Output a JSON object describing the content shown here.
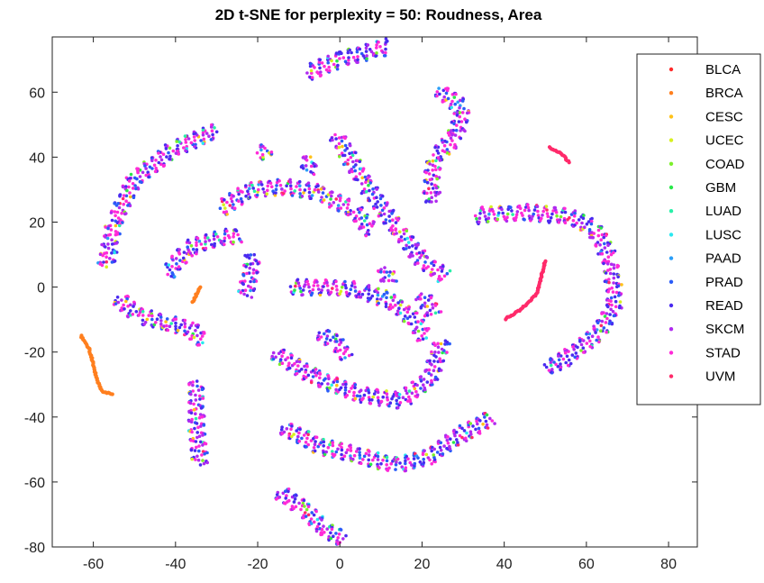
{
  "chart_data": {
    "type": "scatter",
    "title": "2D t-SNE for perplexity = 50: Roudness, Area",
    "xlim": [
      -70,
      87
    ],
    "ylim": [
      -80,
      77
    ],
    "xticks": [
      -60,
      -40,
      -20,
      0,
      20,
      40,
      60,
      80
    ],
    "yticks": [
      -80,
      -60,
      -40,
      -20,
      0,
      20,
      40,
      60
    ],
    "grid": false,
    "legend_position": "top-right",
    "series": [
      {
        "name": "BLCA",
        "color": "#ff2a2a"
      },
      {
        "name": "BRCA",
        "color": "#ff7f1e"
      },
      {
        "name": "CESC",
        "color": "#ffc21a"
      },
      {
        "name": "UCEC",
        "color": "#d8f020"
      },
      {
        "name": "COAD",
        "color": "#7cf02a"
      },
      {
        "name": "GBM",
        "color": "#2ae84a"
      },
      {
        "name": "LUAD",
        "color": "#28f0a8"
      },
      {
        "name": "LUSC",
        "color": "#2ae8f0"
      },
      {
        "name": "PAAD",
        "color": "#2a9ef8"
      },
      {
        "name": "PRAD",
        "color": "#2a5cf8"
      },
      {
        "name": "READ",
        "color": "#4a2af0"
      },
      {
        "name": "SKCM",
        "color": "#b02af0"
      },
      {
        "name": "STAD",
        "color": "#ff2ad8"
      },
      {
        "name": "UVM",
        "color": "#ff2a6a"
      }
    ],
    "clusters": [
      {
        "kind": "mixed",
        "path": [
          [
            -8,
            66
          ],
          [
            0,
            70
          ],
          [
            8,
            73
          ],
          [
            12,
            74
          ]
        ]
      },
      {
        "kind": "mixed",
        "path": [
          [
            -1,
            47
          ],
          [
            6,
            32
          ],
          [
            14,
            18
          ],
          [
            20,
            8
          ],
          [
            26,
            3
          ]
        ]
      },
      {
        "kind": "mixed",
        "path": [
          [
            24,
            61
          ],
          [
            30,
            55
          ],
          [
            28,
            46
          ],
          [
            23,
            40
          ],
          [
            22,
            30
          ],
          [
            23,
            26
          ]
        ]
      },
      {
        "kind": "mixed",
        "path": [
          [
            -30,
            48
          ],
          [
            -40,
            43
          ],
          [
            -50,
            33
          ],
          [
            -55,
            20
          ],
          [
            -57,
            6
          ]
        ]
      },
      {
        "kind": "mixed",
        "path": [
          [
            -20,
            41
          ],
          [
            -17,
            43
          ]
        ]
      },
      {
        "kind": "mixed",
        "path": [
          [
            -7,
            40
          ],
          [
            -8,
            35
          ]
        ]
      },
      {
        "kind": "mixed",
        "path": [
          [
            -29,
            24
          ],
          [
            -22,
            30
          ],
          [
            -14,
            31
          ],
          [
            -5,
            29
          ],
          [
            3,
            24
          ],
          [
            8,
            17
          ]
        ]
      },
      {
        "kind": "mixed",
        "path": [
          [
            -42,
            4
          ],
          [
            -37,
            12
          ],
          [
            -29,
            15
          ],
          [
            -24,
            16
          ]
        ]
      },
      {
        "kind": "mixed",
        "path": [
          [
            -21,
            10
          ],
          [
            -22,
            3
          ],
          [
            -23,
            -3
          ]
        ]
      },
      {
        "kind": "mixed",
        "path": [
          [
            -54,
            -3
          ],
          [
            -49,
            -9
          ],
          [
            -42,
            -11
          ],
          [
            -36,
            -13
          ],
          [
            -33,
            -17
          ]
        ]
      },
      {
        "kind": "mixed",
        "path": [
          [
            11,
            6
          ],
          [
            12,
            1
          ]
        ]
      },
      {
        "kind": "mixed",
        "path": [
          [
            -12,
            0
          ],
          [
            -4,
            0
          ],
          [
            5,
            -1
          ],
          [
            12,
            -4
          ],
          [
            18,
            -10
          ],
          [
            21,
            -16
          ]
        ]
      },
      {
        "kind": "mixed",
        "path": [
          [
            -5,
            -14
          ],
          [
            -1,
            -17
          ],
          [
            2,
            -22
          ]
        ]
      },
      {
        "kind": "mixed",
        "path": [
          [
            -16,
            -20
          ],
          [
            -6,
            -28
          ],
          [
            5,
            -33
          ],
          [
            15,
            -35
          ],
          [
            22,
            -28
          ],
          [
            25,
            -16
          ]
        ]
      },
      {
        "kind": "mixed",
        "path": [
          [
            20,
            -2
          ],
          [
            23,
            -9
          ]
        ]
      },
      {
        "kind": "mixed",
        "path": [
          [
            33,
            22
          ],
          [
            45,
            23
          ],
          [
            55,
            22
          ],
          [
            62,
            18
          ],
          [
            66,
            8
          ],
          [
            67,
            -5
          ],
          [
            63,
            -14
          ],
          [
            55,
            -22
          ],
          [
            50,
            -25
          ]
        ]
      },
      {
        "kind": "mixed",
        "path": [
          [
            -35,
            -29
          ],
          [
            -35,
            -42
          ],
          [
            -34,
            -55
          ]
        ]
      },
      {
        "kind": "mixed",
        "path": [
          [
            -14,
            -43
          ],
          [
            -5,
            -49
          ],
          [
            5,
            -52
          ],
          [
            14,
            -55
          ],
          [
            22,
            -52
          ],
          [
            30,
            -45
          ],
          [
            37,
            -40
          ]
        ]
      },
      {
        "kind": "mixed",
        "path": [
          [
            -15,
            -63
          ],
          [
            -9,
            -68
          ],
          [
            -4,
            -74
          ],
          [
            1,
            -78
          ]
        ]
      },
      {
        "kind": "mono",
        "color": "#ff7f1e",
        "path": [
          [
            -63,
            -15
          ],
          [
            -61,
            -19
          ],
          [
            -60,
            -24
          ],
          [
            -59,
            -29
          ],
          [
            -58,
            -32
          ],
          [
            -55,
            -33
          ]
        ]
      },
      {
        "kind": "mono",
        "color": "#ff7f1e",
        "path": [
          [
            -34,
            0
          ],
          [
            -36,
            -5
          ]
        ]
      },
      {
        "kind": "mono",
        "color": "#ff2a6a",
        "path": [
          [
            50,
            8
          ],
          [
            48,
            -2
          ],
          [
            44,
            -7
          ],
          [
            40,
            -10
          ]
        ]
      },
      {
        "kind": "mono",
        "color": "#ff2a6a",
        "path": [
          [
            51,
            43
          ],
          [
            54,
            41
          ],
          [
            56,
            38
          ]
        ]
      }
    ]
  }
}
